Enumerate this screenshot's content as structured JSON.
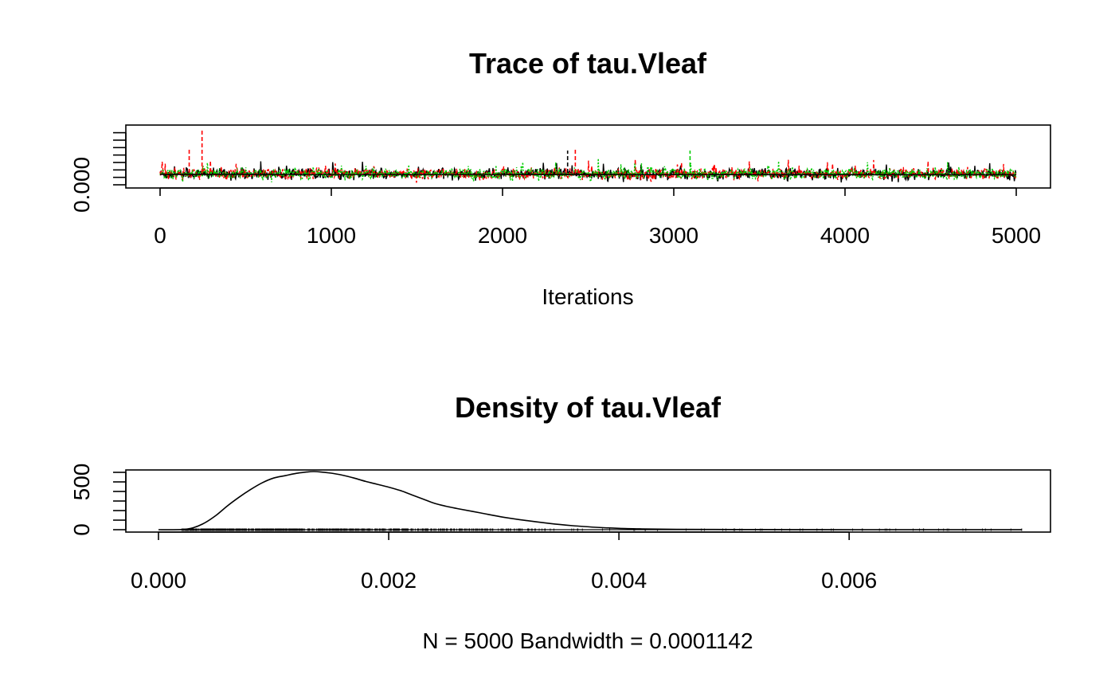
{
  "chart_data": [
    {
      "type": "line",
      "title": "Trace of tau.Vleaf",
      "xlabel": "Iterations",
      "ylabel": "",
      "xlim": [
        0,
        5000
      ],
      "ylim": [
        0.0,
        0.0076
      ],
      "x_ticks": [
        0,
        1000,
        2000,
        3000,
        4000,
        5000
      ],
      "x_tick_labels": [
        "0",
        "1000",
        "2000",
        "3000",
        "4000",
        "5000"
      ],
      "y_ticks": [
        0.0,
        0.001,
        0.002,
        0.003,
        0.004,
        0.005,
        0.006,
        0.007
      ],
      "y_tick_labels": [
        "0.000"
      ],
      "series": [
        {
          "color": "#000000",
          "line_style": "solid",
          "approx_center": 0.00145,
          "approx_spread": 0.0006
        },
        {
          "color": "#ff0000",
          "line_style": "dashed",
          "approx_center": 0.00145,
          "approx_spread": 0.0006
        },
        {
          "color": "#00cd00",
          "line_style": "dotted",
          "approx_center": 0.00145,
          "approx_spread": 0.0006
        }
      ],
      "running_mean": {
        "color": "#000000",
        "start": 0.0014,
        "end": 0.00135
      },
      "peaks": [
        {
          "x": 245,
          "y": 0.0076,
          "color": "#ff0000"
        },
        {
          "x": 2425,
          "y": 0.005,
          "color": "#ff0000"
        },
        {
          "x": 2380,
          "y": 0.0046,
          "color": "#000000"
        },
        {
          "x": 3095,
          "y": 0.0046,
          "color": "#00cd00"
        },
        {
          "x": 170,
          "y": 0.0048,
          "color": "#ff0000"
        }
      ],
      "grid": false,
      "legend": "none"
    },
    {
      "type": "area",
      "title": "Density of tau.Vleaf",
      "xlabel": "N = 5000   Bandwidth = 0.0001142",
      "ylabel": "",
      "xlim": [
        0.0,
        0.0075
      ],
      "ylim": [
        0,
        600
      ],
      "x_ticks": [
        0.0,
        0.002,
        0.004,
        0.006
      ],
      "x_tick_labels": [
        "0.000",
        "0.002",
        "0.004",
        "0.006"
      ],
      "y_ticks": [
        0,
        100,
        200,
        300,
        400,
        500,
        600
      ],
      "y_tick_labels": [
        "0",
        "500"
      ],
      "x": [
        0.0,
        0.0002,
        0.0003,
        0.0004,
        0.0005,
        0.0006,
        0.0007,
        0.0008,
        0.0009,
        0.001,
        0.0011,
        0.0012,
        0.0013,
        0.00135,
        0.0014,
        0.0015,
        0.0016,
        0.0017,
        0.0018,
        0.0019,
        0.002,
        0.0021,
        0.0022,
        0.0023,
        0.0024,
        0.0025,
        0.0026,
        0.0028,
        0.003,
        0.0032,
        0.0034,
        0.0036,
        0.0038,
        0.004,
        0.0042,
        0.0045,
        0.005,
        0.0055,
        0.006,
        0.0065,
        0.007,
        0.0075
      ],
      "values": [
        0,
        2,
        20,
        70,
        150,
        250,
        340,
        420,
        490,
        540,
        565,
        590,
        605,
        608,
        605,
        592,
        570,
        540,
        505,
        475,
        445,
        410,
        365,
        320,
        275,
        245,
        220,
        175,
        130,
        95,
        65,
        42,
        25,
        14,
        8,
        4,
        2,
        1,
        0,
        0,
        0,
        0
      ],
      "rug": {
        "from": 0.0002,
        "to": 0.0075,
        "dense_until": 0.004
      },
      "grid": false,
      "legend": "none"
    }
  ]
}
